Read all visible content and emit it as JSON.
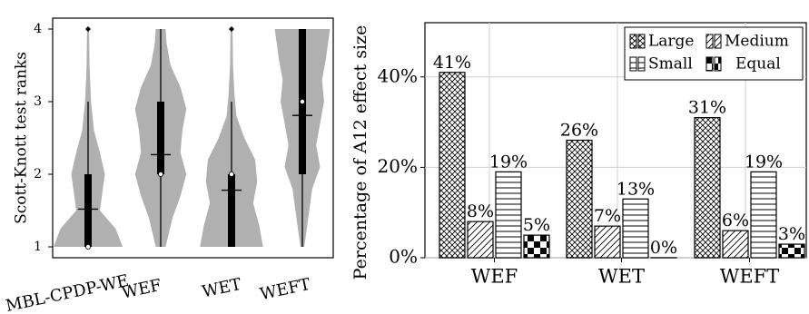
{
  "chart_data": [
    {
      "type": "violin",
      "ylabel": "Scott-Knott test ranks",
      "ylim": [
        0.85,
        4.15
      ],
      "yticks": [
        "1",
        "2",
        "3",
        "4"
      ],
      "categories": [
        "MBL-CPDP-WE",
        "WEF",
        "WET",
        "WEFT"
      ],
      "series": [
        {
          "category": "WEF",
          "mean": 1.52,
          "median": 1.0,
          "q1": 1.0,
          "q3": 2.0,
          "whisker_low": 1.0,
          "whisker_high": 3.0,
          "outliers": [
            4.0
          ],
          "density": [
            [
              1.0,
              0.35
            ],
            [
              1.25,
              0.28
            ],
            [
              1.5,
              0.12
            ],
            [
              1.8,
              0.15
            ],
            [
              2.0,
              0.17
            ],
            [
              2.3,
              0.12
            ],
            [
              2.6,
              0.06
            ],
            [
              3.0,
              0.03
            ],
            [
              3.5,
              0.015
            ],
            [
              4.0,
              0.01
            ]
          ]
        },
        {
          "category": "WET",
          "mean": 2.27,
          "median": 2.0,
          "q1": 2.0,
          "q3": 3.0,
          "whisker_low": 1.0,
          "whisker_high": 4.0,
          "outliers": [],
          "density": [
            [
              1.0,
              0.05
            ],
            [
              1.4,
              0.12
            ],
            [
              1.7,
              0.2
            ],
            [
              2.0,
              0.26
            ],
            [
              2.3,
              0.2
            ],
            [
              2.6,
              0.22
            ],
            [
              2.9,
              0.26
            ],
            [
              3.2,
              0.2
            ],
            [
              3.5,
              0.1
            ],
            [
              3.8,
              0.06
            ],
            [
              4.0,
              0.05
            ]
          ]
        },
        {
          "category": "WEFT",
          "mean": 1.78,
          "median": 2.0,
          "q1": 1.0,
          "q3": 2.0,
          "whisker_low": 1.0,
          "whisker_high": 3.0,
          "outliers": [
            4.0
          ],
          "density": [
            [
              1.0,
              0.32
            ],
            [
              1.3,
              0.28
            ],
            [
              1.6,
              0.22
            ],
            [
              1.9,
              0.26
            ],
            [
              2.2,
              0.24
            ],
            [
              2.5,
              0.13
            ],
            [
              2.8,
              0.05
            ],
            [
              3.1,
              0.03
            ],
            [
              3.5,
              0.015
            ],
            [
              4.0,
              0.01
            ]
          ]
        },
        {
          "category": "",
          "mean": 2.81,
          "median": 3.0,
          "q1": 2.0,
          "q3": 4.0,
          "whisker_low": 1.0,
          "whisker_high": 4.0,
          "outliers": [],
          "density": [
            [
              1.0,
              0.02
            ],
            [
              1.4,
              0.06
            ],
            [
              1.8,
              0.1
            ],
            [
              2.1,
              0.18
            ],
            [
              2.4,
              0.14
            ],
            [
              2.7,
              0.18
            ],
            [
              3.0,
              0.22
            ],
            [
              3.3,
              0.2
            ],
            [
              3.6,
              0.24
            ],
            [
              4.0,
              0.28
            ]
          ]
        }
      ]
    },
    {
      "type": "bar",
      "ylabel": "Percentage of A12 effect size",
      "ylim": [
        0,
        52
      ],
      "yticks": [
        "0%",
        "20%",
        "40%"
      ],
      "categories": [
        "WEF",
        "WET",
        "WEFT"
      ],
      "legend_position": "top-right",
      "series": [
        {
          "name": "Large",
          "pattern": "crosshatch",
          "values": [
            41,
            26,
            31
          ],
          "labels": [
            "41%",
            "26%",
            "31%"
          ]
        },
        {
          "name": "Medium",
          "pattern": "diagonal",
          "values": [
            8,
            7,
            6
          ],
          "labels": [
            "8%",
            "7%",
            "6%"
          ]
        },
        {
          "name": "Small",
          "pattern": "horizontal",
          "values": [
            19,
            13,
            19
          ],
          "labels": [
            "19%",
            "13%",
            "19%"
          ]
        },
        {
          "name": "Equal",
          "pattern": "checker",
          "values": [
            5,
            0,
            3
          ],
          "labels": [
            "5%",
            "0%",
            "3%"
          ]
        }
      ]
    }
  ]
}
